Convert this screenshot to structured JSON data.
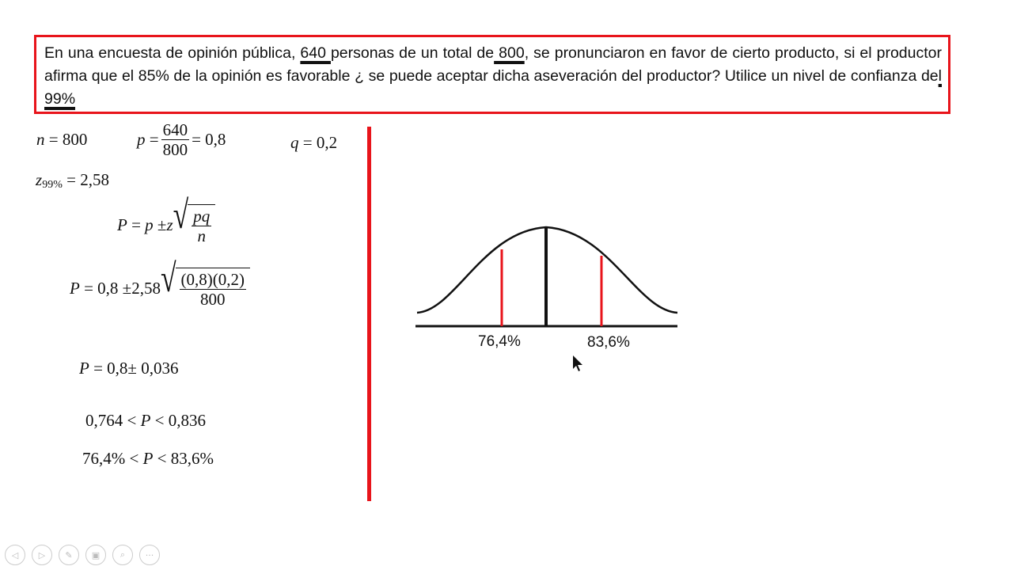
{
  "problem": {
    "segments": [
      {
        "t": "En una encuesta de  opinión   pública, ",
        "u": false
      },
      {
        "t": " 640 ",
        "u": true
      },
      {
        "t": "personas de un    total de",
        "u": false
      },
      {
        "t": " 800",
        "u": true
      },
      {
        "t": ", se pronunciaron  en favor  de   cierto producto, si el productor afirma que el 85% de la opinión  es favorable ¿ se puede aceptar dicha  aseveración del productor?  Utilice un  nivel de confianza de",
        "u": false
      },
      {
        "t": "l 99%",
        "u": true
      }
    ]
  },
  "formulas": {
    "n": {
      "var": "n",
      "rhs": "= 800"
    },
    "p": {
      "var": "p",
      "eq": "=",
      "num": "640",
      "den": "800",
      "rhs": "= 0,8"
    },
    "q": {
      "var": "q",
      "rhs": "= 0,2"
    },
    "z": {
      "var": "z",
      "sub": "99%",
      "rhs": "= 2,58"
    },
    "general": {
      "lhs": "P",
      "eq": "=",
      "p": "p",
      "pm": "±",
      "z": "z",
      "num": "pq",
      "den": "n"
    },
    "subst": {
      "lhs": "P",
      "eq": "= 0,8",
      "pm": "±2,58",
      "num": "(0,8)(0,2)",
      "den": "800"
    },
    "result": {
      "lhs": "P",
      "eq": "= 0,8",
      "pm": "±",
      "val": "0,036"
    },
    "interval1": {
      "a": "0,764",
      "lt1": "<",
      "P": "P",
      "lt2": "<",
      "b": "0,836"
    },
    "interval2": {
      "a": "76,4%",
      "lt1": "<",
      "P": "P",
      "lt2": "<",
      "b": "83,6%"
    }
  },
  "chart": {
    "lower_label": "76,4%",
    "upper_label": "83,6%",
    "accent": "#e8141b"
  },
  "toolbar": {
    "icons": [
      "previous-icon",
      "next-icon",
      "pen-icon",
      "slides-icon",
      "zoom-icon",
      "more-icon"
    ],
    "glyphs": [
      "◁",
      "▷",
      "✎",
      "▣",
      "⌕",
      "···"
    ]
  }
}
